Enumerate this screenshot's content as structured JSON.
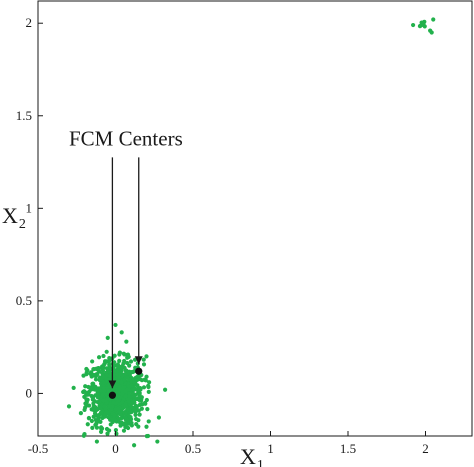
{
  "chart_data": {
    "type": "scatter",
    "xlabel": "X",
    "xlabel_sub": "1",
    "ylabel": "X",
    "ylabel_sub": "2",
    "xlim": [
      -0.5,
      2.3
    ],
    "ylim": [
      -0.23,
      2.12
    ],
    "x_ticks": [
      -0.5,
      0,
      0.5,
      1,
      1.5,
      2
    ],
    "x_tick_labels": [
      "-0.5",
      "0",
      "0.5",
      "1",
      "1.5",
      "2"
    ],
    "y_ticks": [
      0,
      0.5,
      1,
      1.5,
      2
    ],
    "y_tick_labels": [
      "0",
      "0.5",
      "1",
      "1.5",
      "2"
    ],
    "grid": false,
    "point_color": "#22b14c",
    "center_color": "#111111",
    "clusters": [
      {
        "center": [
          0.0,
          0.0
        ],
        "spread": [
          0.09,
          0.09
        ],
        "count": 900
      },
      {
        "center": [
          1.99,
          1.995
        ],
        "spread": [
          0.025,
          0.012
        ],
        "count": 10
      }
    ],
    "outlier_points": [
      {
        "x": 0.0,
        "y": 0.37
      },
      {
        "x": 0.04,
        "y": 0.33
      },
      {
        "x": 0.07,
        "y": 0.28
      },
      {
        "x": -0.05,
        "y": 0.3
      },
      {
        "x": -0.3,
        "y": -0.07
      },
      {
        "x": -0.27,
        "y": 0.03
      },
      {
        "x": 0.32,
        "y": 0.02
      },
      {
        "x": 0.28,
        "y": -0.13
      },
      {
        "x": 0.27,
        "y": -0.26
      },
      {
        "x": 0.21,
        "y": -0.23
      },
      {
        "x": 0.12,
        "y": -0.28
      },
      {
        "x": -0.12,
        "y": -0.26
      },
      {
        "x": -0.2,
        "y": -0.22
      },
      {
        "x": 0.2,
        "y": 0.2
      },
      {
        "x": 0.2,
        "y": -0.18
      },
      {
        "x": 2.05,
        "y": 2.02
      },
      {
        "x": 1.92,
        "y": 1.99
      },
      {
        "x": 2.03,
        "y": 1.96
      },
      {
        "x": 2.04,
        "y": 1.95
      }
    ],
    "centers": [
      {
        "x": -0.02,
        "y": -0.01
      },
      {
        "x": 0.15,
        "y": 0.12
      }
    ],
    "annotations": [
      {
        "text": "FCM Centers",
        "x": -0.3,
        "y": 1.34,
        "arrow_targets": [
          0,
          1
        ]
      }
    ]
  }
}
